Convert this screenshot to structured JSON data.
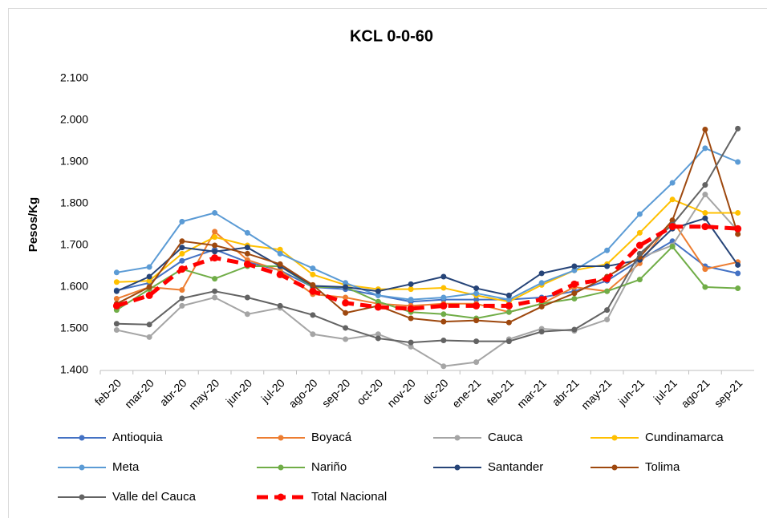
{
  "chart_data": {
    "type": "line",
    "title": "KCL 0-0-60",
    "y_label": "Pesos/Kg",
    "categories": [
      "feb-20",
      "mar-20",
      "abr-20",
      "may-20",
      "jun-20",
      "jul-20",
      "ago-20",
      "sep-20",
      "oct-20",
      "nov-20",
      "dic-20",
      "ene-21",
      "feb-21",
      "mar-21",
      "abr-21",
      "may-21",
      "jun-21",
      "jul-21",
      "ago-21",
      "sep-21"
    ],
    "ylim": [
      1400,
      2100
    ],
    "yticks": [
      {
        "value": 1400,
        "label": "1.400"
      },
      {
        "value": 1500,
        "label": "1.500"
      },
      {
        "value": 1600,
        "label": "1.600"
      },
      {
        "value": 1700,
        "label": "1.700"
      },
      {
        "value": 1800,
        "label": "1.800"
      },
      {
        "value": 1900,
        "label": "1.900"
      },
      {
        "value": 2000,
        "label": "2.000"
      },
      {
        "value": 2100,
        "label": "2.100"
      }
    ],
    "grid": false,
    "legend": "bottom",
    "series": [
      {
        "name": "Antioquia",
        "color": "#4472c4",
        "values": [
          1592,
          1610,
          1663,
          1690,
          1660,
          1640,
          1600,
          1595,
          1580,
          1565,
          1570,
          1570,
          1570,
          1575,
          1590,
          1615,
          1665,
          1710,
          1650,
          1633
        ]
      },
      {
        "name": "Boyacá",
        "color": "#ed7d31",
        "values": [
          1572,
          1600,
          1593,
          1733,
          1665,
          1640,
          1583,
          1575,
          1560,
          1555,
          1560,
          1560,
          1540,
          1560,
          1600,
          1590,
          1657,
          1760,
          1643,
          1660
        ]
      },
      {
        "name": "Cauca",
        "color": "#a5a5a5",
        "values": [
          1497,
          1480,
          1555,
          1575,
          1535,
          1550,
          1487,
          1475,
          1487,
          1457,
          1410,
          1420,
          1475,
          1500,
          1495,
          1522,
          1670,
          1700,
          1822,
          1735
        ]
      },
      {
        "name": "Cundinamarca",
        "color": "#ffc000",
        "values": [
          1612,
          1615,
          1680,
          1720,
          1700,
          1690,
          1630,
          1605,
          1595,
          1595,
          1598,
          1580,
          1565,
          1605,
          1640,
          1655,
          1730,
          1810,
          1778,
          1778
        ]
      },
      {
        "name": "Meta",
        "color": "#5b9bd5",
        "values": [
          1635,
          1648,
          1757,
          1778,
          1730,
          1680,
          1645,
          1610,
          1580,
          1570,
          1575,
          1585,
          1570,
          1610,
          1640,
          1688,
          1775,
          1850,
          1933,
          1900
        ]
      },
      {
        "name": "Nariño",
        "color": "#70ad47",
        "values": [
          1545,
          1595,
          1643,
          1620,
          1650,
          1650,
          1600,
          1600,
          1565,
          1540,
          1535,
          1525,
          1540,
          1560,
          1572,
          1590,
          1618,
          1697,
          1600,
          1597
        ]
      },
      {
        "name": "Santander",
        "color": "#264478",
        "values": [
          1590,
          1625,
          1695,
          1685,
          1695,
          1650,
          1603,
          1600,
          1590,
          1607,
          1625,
          1597,
          1580,
          1633,
          1650,
          1650,
          1665,
          1740,
          1765,
          1653
        ]
      },
      {
        "name": "Tolima",
        "color": "#9e480e",
        "values": [
          1560,
          1600,
          1710,
          1700,
          1680,
          1655,
          1605,
          1538,
          1555,
          1525,
          1517,
          1520,
          1515,
          1553,
          1585,
          1625,
          1672,
          1760,
          1978,
          1727
        ]
      },
      {
        "name": "Valle del Cauca",
        "color": "#636363",
        "values": [
          1512,
          1510,
          1573,
          1590,
          1575,
          1555,
          1533,
          1502,
          1477,
          1467,
          1472,
          1470,
          1470,
          1493,
          1498,
          1545,
          1680,
          1750,
          1845,
          1980
        ]
      },
      {
        "name": "Total Nacional",
        "color": "#ff0000",
        "dashed": true,
        "values": [
          1555,
          1580,
          1643,
          1670,
          1655,
          1630,
          1590,
          1562,
          1552,
          1548,
          1555,
          1555,
          1555,
          1570,
          1607,
          1620,
          1700,
          1745,
          1745,
          1740
        ]
      }
    ]
  }
}
